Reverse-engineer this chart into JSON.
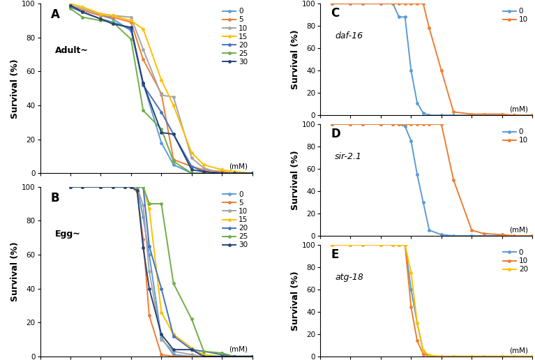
{
  "panel_A": {
    "label": "A",
    "subtitle": "Adult~",
    "italic_subtitle": false,
    "series": [
      {
        "dose": "0",
        "color": "#5B9BD5",
        "x": [
          5,
          7,
          10,
          12,
          15,
          17,
          20,
          22,
          25,
          27,
          30,
          32,
          35
        ],
        "y": [
          98,
          96,
          93,
          91,
          84,
          53,
          18,
          5,
          0,
          0,
          0,
          0,
          0
        ]
      },
      {
        "dose": "5",
        "color": "#ED7D31",
        "x": [
          5,
          7,
          10,
          12,
          15,
          17,
          20,
          22,
          25,
          27,
          30,
          32,
          35
        ],
        "y": [
          99,
          96,
          93,
          92,
          89,
          67,
          47,
          8,
          4,
          2,
          1,
          0,
          0
        ]
      },
      {
        "dose": "10",
        "color": "#A5A5A5",
        "x": [
          5,
          7,
          10,
          12,
          15,
          17,
          20,
          22,
          25,
          27,
          30,
          32,
          35
        ],
        "y": [
          99,
          97,
          94,
          93,
          92,
          73,
          46,
          45,
          9,
          3,
          0,
          0,
          0
        ]
      },
      {
        "dose": "15",
        "color": "#FFC000",
        "x": [
          5,
          7,
          10,
          12,
          15,
          17,
          20,
          22,
          25,
          27,
          30,
          32,
          35
        ],
        "y": [
          100,
          98,
          94,
          93,
          90,
          85,
          55,
          40,
          12,
          5,
          2,
          1,
          0
        ]
      },
      {
        "dose": "20",
        "color": "#4472C4",
        "x": [
          5,
          7,
          10,
          12,
          15,
          17,
          20,
          22,
          25,
          27,
          30,
          32,
          35
        ],
        "y": [
          98,
          95,
          91,
          89,
          85,
          52,
          36,
          23,
          4,
          1,
          0,
          0,
          0
        ]
      },
      {
        "dose": "25",
        "color": "#70AD47",
        "x": [
          5,
          7,
          10,
          12,
          15,
          17,
          20,
          22,
          25,
          27,
          30,
          32,
          35
        ],
        "y": [
          97,
          92,
          90,
          89,
          79,
          37,
          26,
          7,
          0,
          0,
          0,
          0,
          0
        ]
      },
      {
        "dose": "30",
        "color": "#264478",
        "x": [
          5,
          7,
          10,
          12,
          15,
          17,
          20,
          22,
          25,
          27,
          30,
          32,
          35
        ],
        "y": [
          99,
          95,
          91,
          88,
          86,
          53,
          24,
          23,
          2,
          1,
          0,
          0,
          0
        ]
      }
    ]
  },
  "panel_B": {
    "label": "B",
    "subtitle": "Egg~",
    "italic_subtitle": false,
    "series": [
      {
        "dose": "0",
        "color": "#5B9BD5",
        "x": [
          5,
          7,
          10,
          12,
          14,
          15,
          16,
          17,
          18,
          20,
          22,
          25,
          27,
          30,
          32,
          35
        ],
        "y": [
          100,
          100,
          100,
          100,
          100,
          100,
          100,
          82,
          60,
          11,
          1,
          0,
          0,
          0,
          0,
          0
        ]
      },
      {
        "dose": "5",
        "color": "#ED7D31",
        "x": [
          5,
          7,
          10,
          12,
          14,
          15,
          16,
          17,
          18,
          20,
          22,
          25,
          27,
          30,
          32,
          35
        ],
        "y": [
          100,
          100,
          100,
          100,
          100,
          100,
          97,
          69,
          24,
          1,
          0,
          0,
          0,
          0,
          0,
          0
        ]
      },
      {
        "dose": "10",
        "color": "#A5A5A5",
        "x": [
          5,
          7,
          10,
          12,
          14,
          15,
          16,
          17,
          18,
          20,
          22,
          25,
          27,
          30,
          32,
          35
        ],
        "y": [
          100,
          100,
          100,
          100,
          100,
          100,
          100,
          89,
          50,
          10,
          3,
          1,
          0,
          0,
          0,
          0
        ]
      },
      {
        "dose": "15",
        "color": "#FFC000",
        "x": [
          5,
          7,
          10,
          12,
          14,
          15,
          16,
          17,
          18,
          20,
          22,
          25,
          27,
          30,
          32,
          35
        ],
        "y": [
          100,
          100,
          100,
          100,
          100,
          100,
          100,
          100,
          87,
          26,
          13,
          5,
          1,
          0,
          0,
          0
        ]
      },
      {
        "dose": "20",
        "color": "#4472C4",
        "x": [
          5,
          7,
          10,
          12,
          14,
          15,
          16,
          17,
          18,
          20,
          22,
          25,
          27,
          30,
          32,
          35
        ],
        "y": [
          100,
          100,
          100,
          100,
          100,
          100,
          100,
          100,
          65,
          40,
          12,
          4,
          3,
          1,
          0,
          0
        ]
      },
      {
        "dose": "25",
        "color": "#70AD47",
        "x": [
          5,
          7,
          10,
          12,
          14,
          15,
          16,
          17,
          18,
          20,
          22,
          25,
          27,
          30,
          32,
          35
        ],
        "y": [
          100,
          100,
          100,
          100,
          100,
          100,
          100,
          100,
          90,
          90,
          43,
          22,
          3,
          2,
          0,
          0
        ]
      },
      {
        "dose": "30",
        "color": "#264478",
        "x": [
          5,
          7,
          10,
          12,
          14,
          15,
          16,
          17,
          18,
          20,
          22,
          25,
          27,
          30,
          32,
          35
        ],
        "y": [
          100,
          100,
          100,
          100,
          100,
          100,
          98,
          64,
          40,
          13,
          4,
          4,
          0,
          0,
          0,
          0
        ]
      }
    ]
  },
  "panel_C": {
    "label": "C",
    "subtitle": "daf-16",
    "italic_subtitle": true,
    "series": [
      {
        "dose": "0",
        "color": "#5B9BD5",
        "x": [
          2,
          5,
          7,
          10,
          12,
          13,
          14,
          15,
          16,
          17,
          18,
          20,
          22,
          25,
          27,
          30,
          32,
          35
        ],
        "y": [
          100,
          100,
          100,
          100,
          100,
          88,
          88,
          40,
          11,
          2,
          0,
          0,
          0,
          0,
          0,
          0,
          0,
          0
        ]
      },
      {
        "dose": "10",
        "color": "#ED7D31",
        "x": [
          2,
          5,
          7,
          10,
          12,
          13,
          14,
          15,
          16,
          17,
          18,
          20,
          22,
          25,
          27,
          30,
          32,
          35
        ],
        "y": [
          100,
          100,
          100,
          100,
          100,
          100,
          100,
          100,
          100,
          100,
          78,
          40,
          3,
          1,
          1,
          1,
          0,
          0
        ]
      }
    ]
  },
  "panel_D": {
    "label": "D",
    "subtitle": "sir-2.1",
    "italic_subtitle": true,
    "series": [
      {
        "dose": "0",
        "color": "#5B9BD5",
        "x": [
          2,
          5,
          7,
          10,
          12,
          13,
          14,
          15,
          16,
          17,
          18,
          20,
          22,
          25,
          27,
          30,
          32,
          35
        ],
        "y": [
          100,
          100,
          100,
          100,
          100,
          100,
          98,
          85,
          55,
          30,
          5,
          1,
          0,
          0,
          0,
          0,
          0,
          0
        ]
      },
      {
        "dose": "10",
        "color": "#ED7D31",
        "x": [
          2,
          5,
          7,
          10,
          12,
          13,
          14,
          15,
          16,
          17,
          18,
          20,
          22,
          25,
          27,
          30,
          32,
          35
        ],
        "y": [
          100,
          100,
          100,
          100,
          100,
          100,
          100,
          100,
          100,
          100,
          100,
          100,
          50,
          5,
          2,
          1,
          0,
          0
        ]
      }
    ]
  },
  "panel_E": {
    "label": "E",
    "subtitle": "atg-18",
    "italic_subtitle": true,
    "series": [
      {
        "dose": "0",
        "color": "#5B9BD5",
        "x": [
          2,
          5,
          7,
          10,
          12,
          13,
          14,
          15,
          16,
          17,
          18,
          20,
          22,
          25,
          27,
          30,
          32,
          35
        ],
        "y": [
          100,
          100,
          100,
          100,
          100,
          100,
          100,
          60,
          30,
          5,
          0,
          0,
          0,
          0,
          0,
          0,
          0,
          0
        ]
      },
      {
        "dose": "10",
        "color": "#ED7D31",
        "x": [
          2,
          5,
          7,
          10,
          12,
          13,
          14,
          15,
          16,
          17,
          18,
          20,
          22,
          25,
          27,
          30,
          32,
          35
        ],
        "y": [
          100,
          100,
          100,
          100,
          100,
          100,
          100,
          44,
          14,
          2,
          0,
          0,
          0,
          0,
          0,
          0,
          0,
          0
        ]
      },
      {
        "dose": "20",
        "color": "#FFC000",
        "x": [
          2,
          5,
          7,
          10,
          12,
          13,
          14,
          15,
          16,
          17,
          18,
          20,
          22,
          25,
          27,
          30,
          32,
          35
        ],
        "y": [
          100,
          100,
          100,
          100,
          100,
          100,
          100,
          75,
          30,
          5,
          1,
          0,
          0,
          0,
          0,
          0,
          0,
          0
        ]
      }
    ]
  },
  "xlim": [
    0,
    35
  ],
  "ylim": [
    0,
    100
  ],
  "xticks": [
    0,
    5,
    10,
    15,
    20,
    25,
    30,
    35
  ],
  "yticks": [
    0,
    20,
    40,
    60,
    80,
    100
  ],
  "marker": "o",
  "markersize": 3.5,
  "linewidth": 1.4,
  "legend_fontsize": 7.5,
  "tick_fontsize": 7.5,
  "axis_label_fontsize": 9,
  "panel_label_fontsize": 12,
  "subtitle_fontsize": 9,
  "bg_color": "#FFFFFF"
}
